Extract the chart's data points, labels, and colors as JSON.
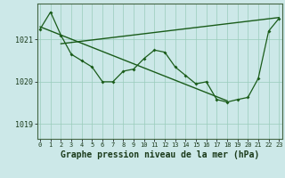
{
  "xlabel": "Graphe pression niveau de la mer (hPa)",
  "bg_color": "#cce8e8",
  "plot_bg_color": "#cce8e8",
  "line_color": "#1a5c1a",
  "grid_color": "#99ccbb",
  "yticks": [
    1019,
    1020,
    1021
  ],
  "ylim": [
    1018.65,
    1021.85
  ],
  "xlim": [
    -0.3,
    23.3
  ],
  "xticks": [
    0,
    1,
    2,
    3,
    4,
    5,
    6,
    7,
    8,
    9,
    10,
    11,
    12,
    13,
    14,
    15,
    16,
    17,
    18,
    19,
    20,
    21,
    22,
    23
  ],
  "hours": [
    0,
    1,
    2,
    3,
    4,
    5,
    6,
    7,
    8,
    9,
    10,
    11,
    12,
    13,
    14,
    15,
    16,
    17,
    18,
    19,
    20,
    21,
    22,
    23
  ],
  "pressure": [
    1021.25,
    1021.65,
    1021.1,
    1020.65,
    1020.5,
    1020.35,
    1020.0,
    1020.0,
    1020.25,
    1020.3,
    1020.55,
    1020.75,
    1020.7,
    1020.35,
    1020.15,
    1019.95,
    1020.0,
    1019.58,
    1019.52,
    1019.58,
    1019.63,
    1020.08,
    1021.2,
    1021.5
  ],
  "trend1_x": [
    0,
    18
  ],
  "trend1_y": [
    1021.3,
    1019.55
  ],
  "trend2_x": [
    2,
    23
  ],
  "trend2_y": [
    1020.9,
    1021.52
  ],
  "font_size_label": 7,
  "tick_label_fontsize": 6
}
